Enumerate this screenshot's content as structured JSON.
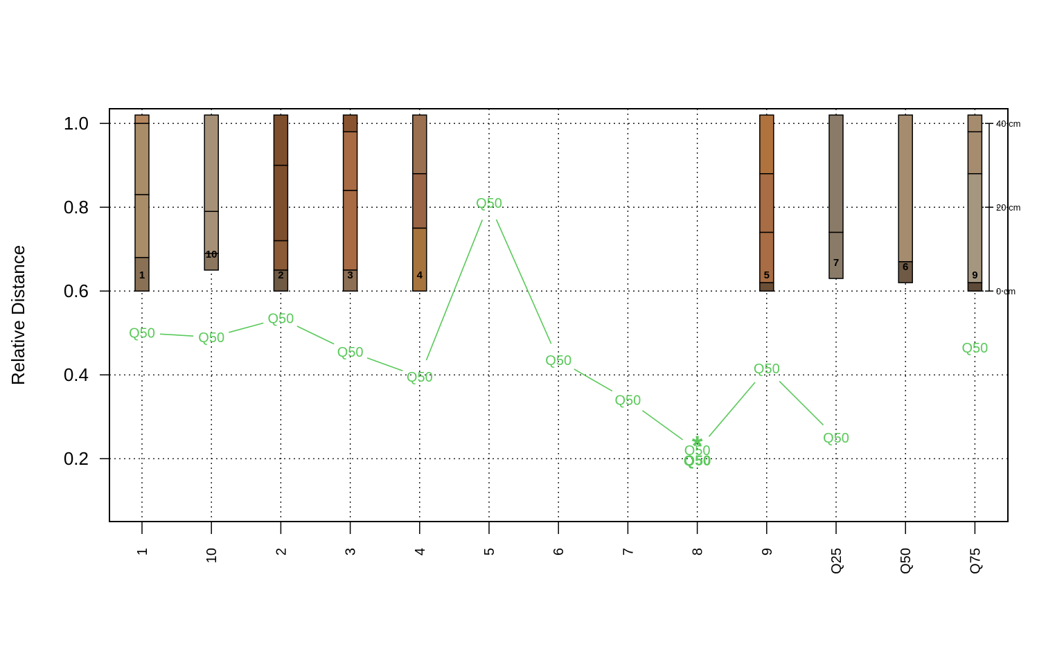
{
  "chart_data": {
    "type": "line",
    "title": "",
    "ylabel": "Relative Distance",
    "xlabel": "",
    "ylim": [
      0.05,
      1.035
    ],
    "grid": true,
    "yticks": [
      "0.2",
      "0.4",
      "0.6",
      "0.8",
      "1.0"
    ],
    "ytick_values": [
      0.2,
      0.4,
      0.6,
      0.8,
      1.0
    ],
    "categories": [
      "1",
      "10",
      "2",
      "3",
      "4",
      "5",
      "6",
      "7",
      "8",
      "9",
      "Q25",
      "Q50",
      "Q75"
    ],
    "series": [
      {
        "values": [
          0.5,
          0.49,
          0.535,
          0.455,
          0.395,
          0.81,
          0.435,
          0.34,
          0.22,
          0.415,
          0.25,
          null,
          0.465
        ],
        "point_labels": [
          "Q50",
          "Q50",
          "Q50",
          "Q50",
          "Q50",
          "Q50",
          "Q50",
          "Q50",
          "Q50",
          "Q50",
          "Q50",
          "",
          "Q50"
        ],
        "connected": [
          true,
          true,
          true,
          true,
          true,
          true,
          true,
          true,
          true,
          true,
          true,
          false,
          false
        ],
        "color": "#5ac95a"
      }
    ],
    "marker": {
      "category": "8",
      "symbol": "*",
      "label": "Q50",
      "value": 0.245
    },
    "depth_axis": {
      "labels": [
        "0 cm",
        "20 cm",
        "40 cm"
      ],
      "depths": [
        0,
        20,
        40
      ],
      "top_value": 0.6,
      "scale": 0.01
    },
    "profiles": [
      {
        "category": "1",
        "id": "1",
        "horizons": [
          {
            "top": 0,
            "bottom": 2,
            "color": "#b4875e"
          },
          {
            "top": 2,
            "bottom": 19,
            "color": "#a98c68"
          },
          {
            "top": 19,
            "bottom": 34,
            "color": "#a98c68"
          },
          {
            "top": 34,
            "bottom": 42,
            "color": "#8a7155"
          }
        ]
      },
      {
        "category": "10",
        "id": "10",
        "horizons": [
          {
            "top": 0,
            "bottom": 23,
            "color": "#a69178"
          },
          {
            "top": 23,
            "bottom": 33,
            "color": "#a69178"
          },
          {
            "top": 33,
            "bottom": 37,
            "color": "#8c765e"
          }
        ]
      },
      {
        "category": "2",
        "id": "2",
        "horizons": [
          {
            "top": 0,
            "bottom": 12,
            "color": "#7e4f2c"
          },
          {
            "top": 12,
            "bottom": 30,
            "color": "#7e4f2c"
          },
          {
            "top": 30,
            "bottom": 37,
            "color": "#8a5b36"
          },
          {
            "top": 37,
            "bottom": 42,
            "color": "#6f5a44"
          }
        ]
      },
      {
        "category": "3",
        "id": "3",
        "horizons": [
          {
            "top": 0,
            "bottom": 4,
            "color": "#8a5330"
          },
          {
            "top": 4,
            "bottom": 18,
            "color": "#a86b44"
          },
          {
            "top": 18,
            "bottom": 37,
            "color": "#a86b44"
          },
          {
            "top": 37,
            "bottom": 42,
            "color": "#8d6f55"
          }
        ]
      },
      {
        "category": "4",
        "id": "4",
        "horizons": [
          {
            "top": 0,
            "bottom": 14,
            "color": "#9a7050"
          },
          {
            "top": 14,
            "bottom": 27,
            "color": "#9a6545"
          },
          {
            "top": 27,
            "bottom": 42,
            "color": "#a8743e"
          }
        ]
      },
      {
        "category": "9",
        "id": "5",
        "horizons": [
          {
            "top": 0,
            "bottom": 14,
            "color": "#b0733e"
          },
          {
            "top": 14,
            "bottom": 28,
            "color": "#a86d44"
          },
          {
            "top": 28,
            "bottom": 40,
            "color": "#a86d44"
          },
          {
            "top": 40,
            "bottom": 42,
            "color": "#6a4e36"
          }
        ]
      },
      {
        "category": "Q25",
        "id": "7",
        "horizons": [
          {
            "top": 0,
            "bottom": 28,
            "color": "#8a7b68"
          },
          {
            "top": 28,
            "bottom": 39,
            "color": "#8a7b68"
          }
        ]
      },
      {
        "category": "Q50",
        "id": "6",
        "horizons": [
          {
            "top": 0,
            "bottom": 35,
            "color": "#a68c6e"
          },
          {
            "top": 35,
            "bottom": 40,
            "color": "#6f5a45"
          }
        ]
      },
      {
        "category": "Q75",
        "id": "9",
        "horizons": [
          {
            "top": 0,
            "bottom": 4,
            "color": "#a68c6e"
          },
          {
            "top": 4,
            "bottom": 14,
            "color": "#a68c6e"
          },
          {
            "top": 14,
            "bottom": 40,
            "color": "#a59680"
          },
          {
            "top": 40,
            "bottom": 42,
            "color": "#5e4a38"
          }
        ]
      }
    ]
  }
}
